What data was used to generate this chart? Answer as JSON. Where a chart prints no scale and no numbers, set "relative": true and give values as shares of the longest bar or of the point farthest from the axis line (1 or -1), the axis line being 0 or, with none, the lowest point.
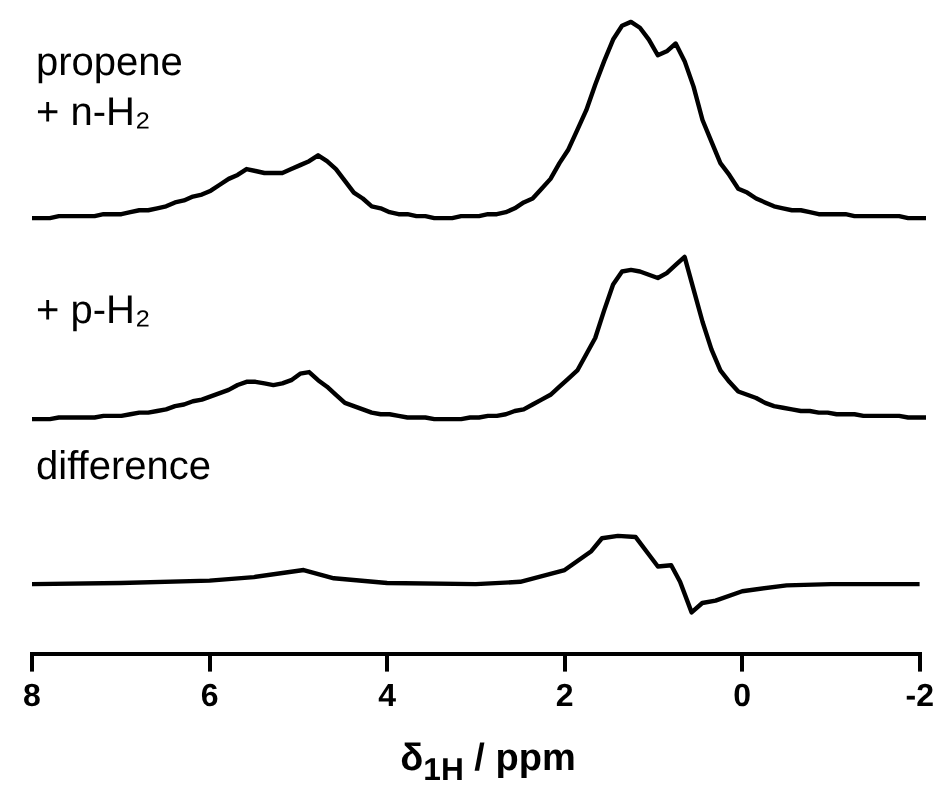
{
  "chart_data": [
    {
      "type": "line",
      "annotations": [
        "propene\n+ n-H₂"
      ],
      "color": "#000000",
      "marker": "none",
      "relative": true,
      "tick_labels": false,
      "grid": false,
      "legend": false,
      "categories": [
        null,
        null,
        null,
        null,
        null,
        null,
        null,
        null,
        null,
        null,
        null,
        null,
        null,
        null,
        null,
        null,
        null,
        null,
        null,
        null,
        null,
        null,
        null,
        null,
        null,
        null,
        null,
        null,
        null,
        null,
        null,
        null,
        null,
        null,
        null,
        null,
        null,
        null,
        null,
        null,
        null,
        null,
        null,
        null,
        null,
        null,
        null,
        null,
        null,
        null,
        null,
        null,
        null,
        null,
        null,
        null,
        null,
        null,
        null,
        null,
        null,
        null,
        null,
        null,
        null,
        null,
        null,
        null,
        null,
        null,
        null,
        null,
        null,
        null,
        null,
        null,
        null,
        null,
        null,
        null,
        null,
        null,
        null,
        null,
        null,
        null,
        null,
        null,
        null,
        null,
        null,
        null,
        null,
        null,
        null,
        null,
        null,
        null,
        null,
        null,
        null
      ],
      "values": [
        0,
        0,
        0,
        0.01,
        0.01,
        0.01,
        0.01,
        0.01,
        0.02,
        0.02,
        0.02,
        0.03,
        0.04,
        0.04,
        0.05,
        0.06,
        0.08,
        0.09,
        0.11,
        0.12,
        0.14,
        0.17,
        0.2,
        0.22,
        0.25,
        0.24,
        0.23,
        0.23,
        0.23,
        0.25,
        0.27,
        0.29,
        0.32,
        0.29,
        0.25,
        0.19,
        0.13,
        0.1,
        0.06,
        0.05,
        0.03,
        0.02,
        0.02,
        0.01,
        0.01,
        0,
        0,
        0,
        0.01,
        0.01,
        0.01,
        0.02,
        0.02,
        0.03,
        0.05,
        0.08,
        0.1,
        0.15,
        0.2,
        0.28,
        0.35,
        0.45,
        0.55,
        0.68,
        0.8,
        0.91,
        0.98,
        1,
        0.97,
        0.91,
        0.83,
        0.85,
        0.89,
        0.8,
        0.67,
        0.5,
        0.39,
        0.28,
        0.22,
        0.15,
        0.13,
        0.1,
        0.08,
        0.06,
        0.05,
        0.04,
        0.04,
        0.03,
        0.02,
        0.02,
        0.02,
        0.02,
        0.01,
        0.01,
        0.01,
        0.01,
        0.01,
        0.01,
        0,
        0,
        0
      ]
    },
    {
      "type": "line",
      "annotations": [
        "+ p-H₂"
      ],
      "color": "#000000",
      "marker": "none",
      "relative": true,
      "tick_labels": false,
      "grid": false,
      "legend": false,
      "categories": [
        null,
        null,
        null,
        null,
        null,
        null,
        null,
        null,
        null,
        null,
        null,
        null,
        null,
        null,
        null,
        null,
        null,
        null,
        null,
        null,
        null,
        null,
        null,
        null,
        null,
        null,
        null,
        null,
        null,
        null,
        null,
        null,
        null,
        null,
        null,
        null,
        null,
        null,
        null,
        null,
        null,
        null,
        null,
        null,
        null,
        null,
        null,
        null,
        null,
        null,
        null,
        null,
        null,
        null,
        null,
        null,
        null,
        null,
        null,
        null,
        null,
        null,
        null,
        null,
        null,
        null,
        null,
        null,
        null,
        null,
        null,
        null,
        null,
        null,
        null,
        null,
        null,
        null,
        null,
        null,
        null,
        null,
        null,
        null,
        null,
        null,
        null,
        null,
        null,
        null,
        null,
        null,
        null,
        null,
        null,
        null,
        null,
        null,
        null,
        null,
        null
      ],
      "values": [
        0,
        0,
        0,
        0.01,
        0.01,
        0.01,
        0.01,
        0.01,
        0.02,
        0.02,
        0.02,
        0.03,
        0.04,
        0.04,
        0.05,
        0.06,
        0.08,
        0.09,
        0.11,
        0.12,
        0.14,
        0.16,
        0.18,
        0.21,
        0.23,
        0.23,
        0.22,
        0.21,
        0.22,
        0.24,
        0.28,
        0.29,
        0.24,
        0.2,
        0.15,
        0.1,
        0.08,
        0.06,
        0.04,
        0.03,
        0.03,
        0.02,
        0.01,
        0.01,
        0.01,
        0,
        0,
        0,
        0,
        0.01,
        0.01,
        0.02,
        0.02,
        0.03,
        0.05,
        0.06,
        0.09,
        0.12,
        0.15,
        0.2,
        0.25,
        0.3,
        0.4,
        0.5,
        0.67,
        0.83,
        0.91,
        0.92,
        0.91,
        0.89,
        0.87,
        0.9,
        0.95,
        1,
        0.8,
        0.6,
        0.43,
        0.3,
        0.23,
        0.17,
        0.15,
        0.13,
        0.1,
        0.08,
        0.07,
        0.06,
        0.05,
        0.05,
        0.04,
        0.04,
        0.03,
        0.03,
        0.03,
        0.02,
        0.02,
        0.02,
        0.02,
        0.02,
        0.01,
        0.01,
        0.01
      ]
    },
    {
      "type": "line",
      "annotations": [
        "difference"
      ],
      "color": "#000000",
      "marker": "none",
      "relative": true,
      "tick_labels": "x",
      "grid": false,
      "legend": false,
      "xlim": [
        8,
        -2
      ],
      "xticks": [
        8,
        6,
        4,
        2,
        0,
        -2
      ],
      "xlabel": "δ$_{1H}$ / ppm",
      "x": [
        8,
        7,
        6,
        5.5,
        4.94,
        4.6,
        4,
        3,
        2.5,
        2,
        1.7,
        1.58,
        1.4,
        1.2,
        1.05,
        0.95,
        0.8,
        0.7,
        0.57,
        0.45,
        0.3,
        0,
        -0.5,
        -1,
        -2
      ],
      "values": [
        0.59,
        0.6,
        0.62,
        0.65,
        0.71,
        0.64,
        0.6,
        0.59,
        0.61,
        0.71,
        0.87,
        0.98,
        1,
        0.99,
        0.84,
        0.74,
        0.75,
        0.61,
        0.35,
        0.43,
        0.45,
        0.53,
        0.58,
        0.59,
        0.59
      ]
    }
  ]
}
